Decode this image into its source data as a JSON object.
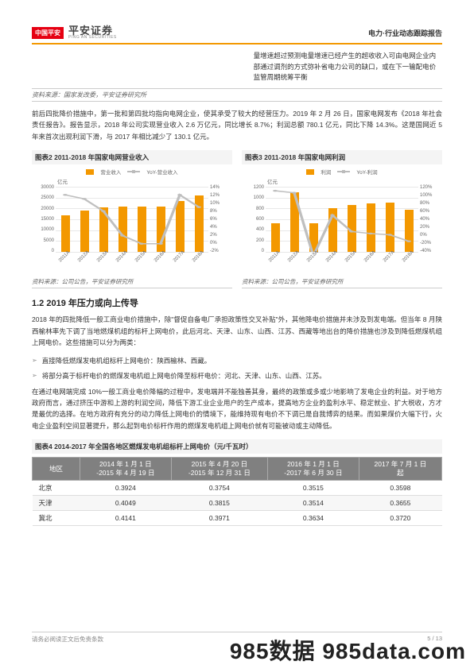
{
  "header": {
    "badge": "中国平安",
    "brand_cn": "平安证券",
    "brand_en": "PING AN SECURITIES",
    "doc_title": "电力·行业动态跟踪报告"
  },
  "side_note": "量增速超过预测电量增速已经产生的超收收入可由电网企业内部通过调剂的方式弥补省电力公司的缺口，或在下一输配电价监管周期统筹平衡",
  "src1": "资料来源：国家发改委，平安证券研究所",
  "para1": "前后四批降价措施中，第一批和第四批均指向电网企业，使其承受了较大的经营压力。2019 年 2 月 26 日，国家电网发布《2018 年社会责任报告》。报告显示，2018 年公司实现营业收入 2.6 万亿元，同比增长 8.7%；利润总额 780.1 亿元，同比下降 14.3%。这是国网近 5 年来首次出现利润下滑，与 2017 年相比减少了 130.1 亿元。",
  "chart2": {
    "title": "图表2     2011-2018 年国家电网营业收入",
    "legend_bar": "营业收入",
    "legend_line": "YoY-营业收入",
    "unit": "亿元",
    "x": [
      "2011A",
      "2012A",
      "2013A",
      "2014A",
      "2015A",
      "2016A",
      "2017A",
      "2018A"
    ],
    "y_left": [
      "30000",
      "25000",
      "20000",
      "15000",
      "10000",
      "5000",
      "0"
    ],
    "y_right": [
      "14%",
      "12%",
      "10%",
      "8%",
      "6%",
      "4%",
      "2%",
      "0%",
      "-2%"
    ],
    "bars": [
      17000,
      19000,
      20500,
      21000,
      20800,
      21000,
      23500,
      26000
    ],
    "bar_max": 30000,
    "line": [
      12,
      11,
      8,
      2,
      0,
      0,
      12,
      9
    ],
    "line_min": -2,
    "line_max": 14,
    "bar_color": "#f39800",
    "line_color": "#bfbfbf",
    "grid_color": "#e8e8e8"
  },
  "chart3": {
    "title": "图表3     2011-2018 年国家电网利润",
    "legend_bar": "利润",
    "legend_line": "YoY-利润",
    "unit": "亿元",
    "x": [
      "2011A",
      "2012A",
      "2013A",
      "2014A",
      "2015A",
      "2016A",
      "2017A",
      "2018A"
    ],
    "y_left": [
      "1200",
      "1000",
      "800",
      "600",
      "400",
      "200",
      "0"
    ],
    "y_right": [
      "120%",
      "100%",
      "80%",
      "60%",
      "40%",
      "20%",
      "0%",
      "-20%",
      "-40%"
    ],
    "bars": [
      530,
      1100,
      530,
      800,
      870,
      900,
      910,
      780
    ],
    "bar_max": 1200,
    "line": [
      110,
      105,
      -50,
      50,
      10,
      5,
      2,
      -14
    ],
    "line_min": -40,
    "line_max": 120,
    "bar_color": "#f39800",
    "line_color": "#bfbfbf"
  },
  "src_charts": "资料来源：公司公告，平安证券研究所",
  "sec_title": "1.2 2019 年压力或向上传导",
  "para2": "2018 年的四批降低一般工商业电价措施中，除\"督促自备电厂承担政策性交叉补贴\"外，其他降电价措施并未涉及到发电端。但当年 8 月陕西榆林率先下调了当地燃煤机组的标杆上网电价，此后河北、天津、山东、山西、江苏、西藏等地出台的降价措施也涉及到降低燃煤机组上网电价。这些措施可以分为两类：",
  "bullet1": "直接降低燃煤发电机组标杆上网电价：陕西榆林、西藏。",
  "bullet2": "将部分高于标杆电价的燃煤发电机组上网电价降至标杆电价：河北、天津、山东、山西、江苏。",
  "para3": "在通过电网端完成 10%一般工商业电价降幅的过程中，发电端并不能独善其身，最终的政策或多或少地影响了发电企业的利益。对于地方政府而言，通过挤压中游和上游的利润空间，降低下游工业企业用户的生产成本，提高地方企业的盈利水平、稳定就业、扩大税收，方才是最优的选择。在地方政府有充分的动力降低上网电价的情境下，能维持现有电价不下调已是自我博弈的结果。而如果煤价大幅下行，火电企业盈利空间显著提升，那么起到电价标杆作用的燃煤发电机组上网电价就有可能被动或主动降低。",
  "table4": {
    "title": "图表4     2014-2017 年全国各地区燃煤发电机组标杆上网电价（元/千瓦时）",
    "cols": [
      "地区",
      "2014 年 1 月 1 日\n-2015 年 4 月 19 日",
      "2015 年 4 月 20 日\n-2015 年 12 月 31 日",
      "2016 年 1 月 1 日\n-2017 年 6 月 30 日",
      "2017 年 7 月 1 日\n起"
    ],
    "rows": [
      [
        "北京",
        "0.3924",
        "0.3754",
        "0.3515",
        "0.3598"
      ],
      [
        "天津",
        "0.4049",
        "0.3815",
        "0.3514",
        "0.3655"
      ],
      [
        "冀北",
        "0.4141",
        "0.3971",
        "0.3634",
        "0.3720"
      ]
    ]
  },
  "footer": {
    "left": "请务必阅读正文后免责条款",
    "right": "5 / 13"
  },
  "watermark": "985数据  985data.com"
}
